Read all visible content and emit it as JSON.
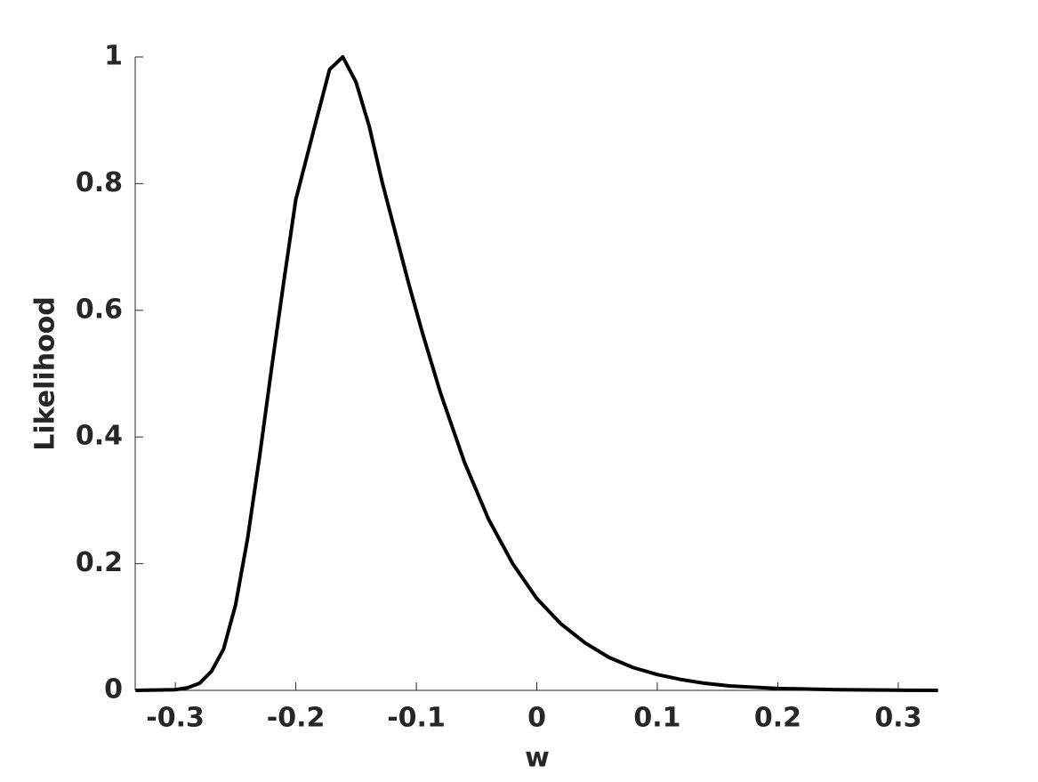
{
  "chart_data": {
    "type": "line",
    "xlabel": "w",
    "ylabel": "Likelihood",
    "x": [
      -0.333,
      -0.3,
      -0.29,
      -0.28,
      -0.27,
      -0.26,
      -0.25,
      -0.24,
      -0.23,
      -0.22,
      -0.21,
      -0.2,
      -0.183,
      -0.172,
      -0.161,
      -0.15,
      -0.139,
      -0.128,
      -0.117,
      -0.106,
      -0.095,
      -0.08,
      -0.06,
      -0.04,
      -0.02,
      0,
      0.02,
      0.04,
      0.06,
      0.08,
      0.1,
      0.12,
      0.14,
      0.16,
      0.18,
      0.2,
      0.25,
      0.3,
      0.333
    ],
    "series": [
      {
        "color": "#000000",
        "values": [
          0,
          0.001,
          0.004,
          0.011,
          0.03,
          0.065,
          0.135,
          0.24,
          0.37,
          0.51,
          0.645,
          0.775,
          0.9,
          0.98,
          1.0,
          0.96,
          0.89,
          0.8,
          0.72,
          0.64,
          0.565,
          0.47,
          0.36,
          0.27,
          0.2,
          0.145,
          0.105,
          0.075,
          0.052,
          0.036,
          0.025,
          0.017,
          0.011,
          0.007,
          0.005,
          0.003,
          0.001,
          0.0003,
          0
        ]
      }
    ],
    "xlim": [
      -0.3333,
      0.3333
    ],
    "xticks": [
      -0.3,
      -0.2,
      -0.1,
      0,
      0.1,
      0.2,
      0.3
    ],
    "ylim": [
      0,
      1
    ],
    "yticks": [
      0,
      0.2,
      0.4,
      0.6,
      0.8,
      1
    ],
    "grid": false
  }
}
